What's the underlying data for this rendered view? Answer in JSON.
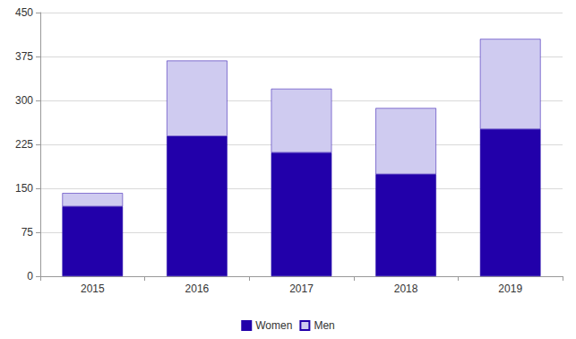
{
  "chart_data": {
    "type": "bar",
    "stacked": true,
    "categories": [
      "2015",
      "2016",
      "2017",
      "2018",
      "2019"
    ],
    "series": [
      {
        "name": "Women",
        "color": "#2200aa",
        "values": [
          119,
          239,
          211,
          174,
          251
        ]
      },
      {
        "name": "Men",
        "color": "#cfcbf0",
        "values": [
          23,
          129,
          109,
          113,
          154
        ]
      }
    ],
    "ylim": [
      0,
      450
    ],
    "yticks": [
      0,
      75,
      150,
      225,
      300,
      375,
      450
    ],
    "grid": true,
    "legend": "bottom"
  }
}
